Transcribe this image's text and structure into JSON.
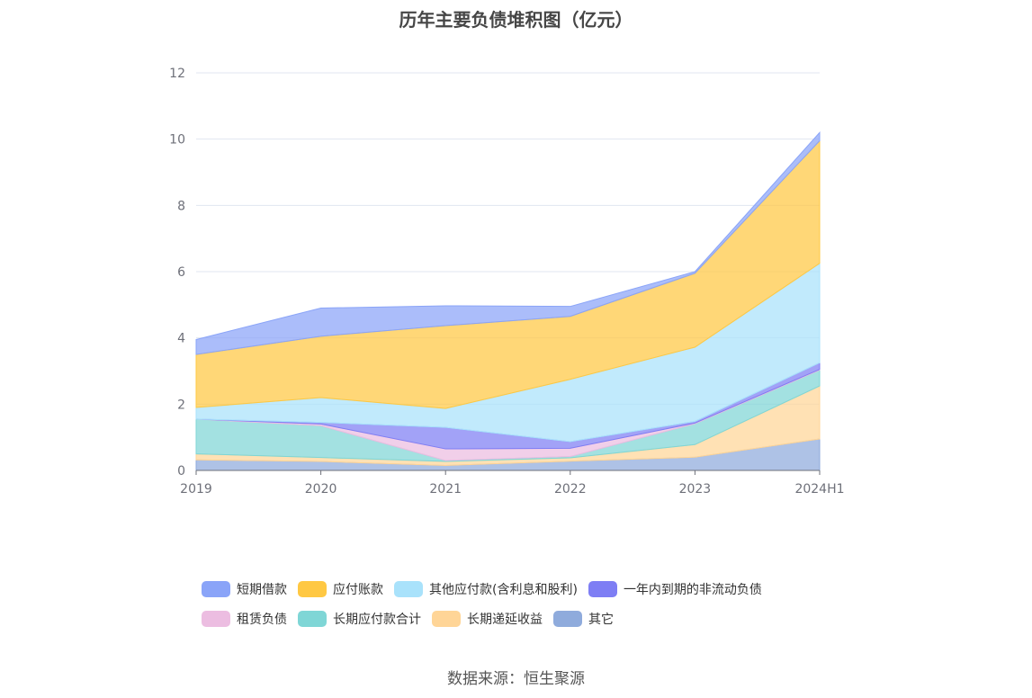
{
  "chart_data": {
    "type": "area",
    "stacked": true,
    "title": "历年主要负债堆积图（亿元）",
    "xlabel": "",
    "ylabel": "",
    "categories": [
      "2019",
      "2020",
      "2021",
      "2022",
      "2023",
      "2024H1"
    ],
    "ylim": [
      0,
      12
    ],
    "yticks": [
      0,
      2,
      4,
      6,
      8,
      10,
      12
    ],
    "grid": true,
    "legend_position": "bottom",
    "series": [
      {
        "name": "其它",
        "color": "#8fabdc",
        "values": [
          0.32,
          0.27,
          0.15,
          0.28,
          0.4,
          0.95
        ]
      },
      {
        "name": "长期递延收益",
        "color": "#ffd597",
        "values": [
          0.18,
          0.12,
          0.12,
          0.1,
          0.38,
          1.6
        ]
      },
      {
        "name": "长期应付款合计",
        "color": "#7fd6d6",
        "values": [
          1.05,
          0.96,
          0.03,
          0.04,
          0.63,
          0.48
        ]
      },
      {
        "name": "租赁负债",
        "color": "#ecbde1",
        "values": [
          0.0,
          0.05,
          0.35,
          0.25,
          0.02,
          0.02
        ]
      },
      {
        "name": "一年内到期的非流动负债",
        "color": "#7e7ef4",
        "values": [
          0.0,
          0.05,
          0.65,
          0.2,
          0.05,
          0.2
        ]
      },
      {
        "name": "其他应付款(含利息和股利)",
        "color": "#a9e2fb",
        "values": [
          0.35,
          0.75,
          0.57,
          1.88,
          2.24,
          3.0
        ]
      },
      {
        "name": "应付账款",
        "color": "#ffc843",
        "values": [
          1.6,
          1.85,
          2.5,
          1.9,
          2.23,
          3.7
        ]
      },
      {
        "name": "短期借款",
        "color": "#8aa4f8",
        "values": [
          0.45,
          0.85,
          0.6,
          0.3,
          0.05,
          0.25
        ]
      }
    ],
    "legend_rows": [
      [
        "短期借款",
        "应付账款",
        "其他应付款(含利息和股利)",
        "一年内到期的非流动负债"
      ],
      [
        "租赁负债",
        "长期应付款合计",
        "长期递延收益",
        "其它"
      ]
    ]
  },
  "source": "数据来源：恒生聚源"
}
